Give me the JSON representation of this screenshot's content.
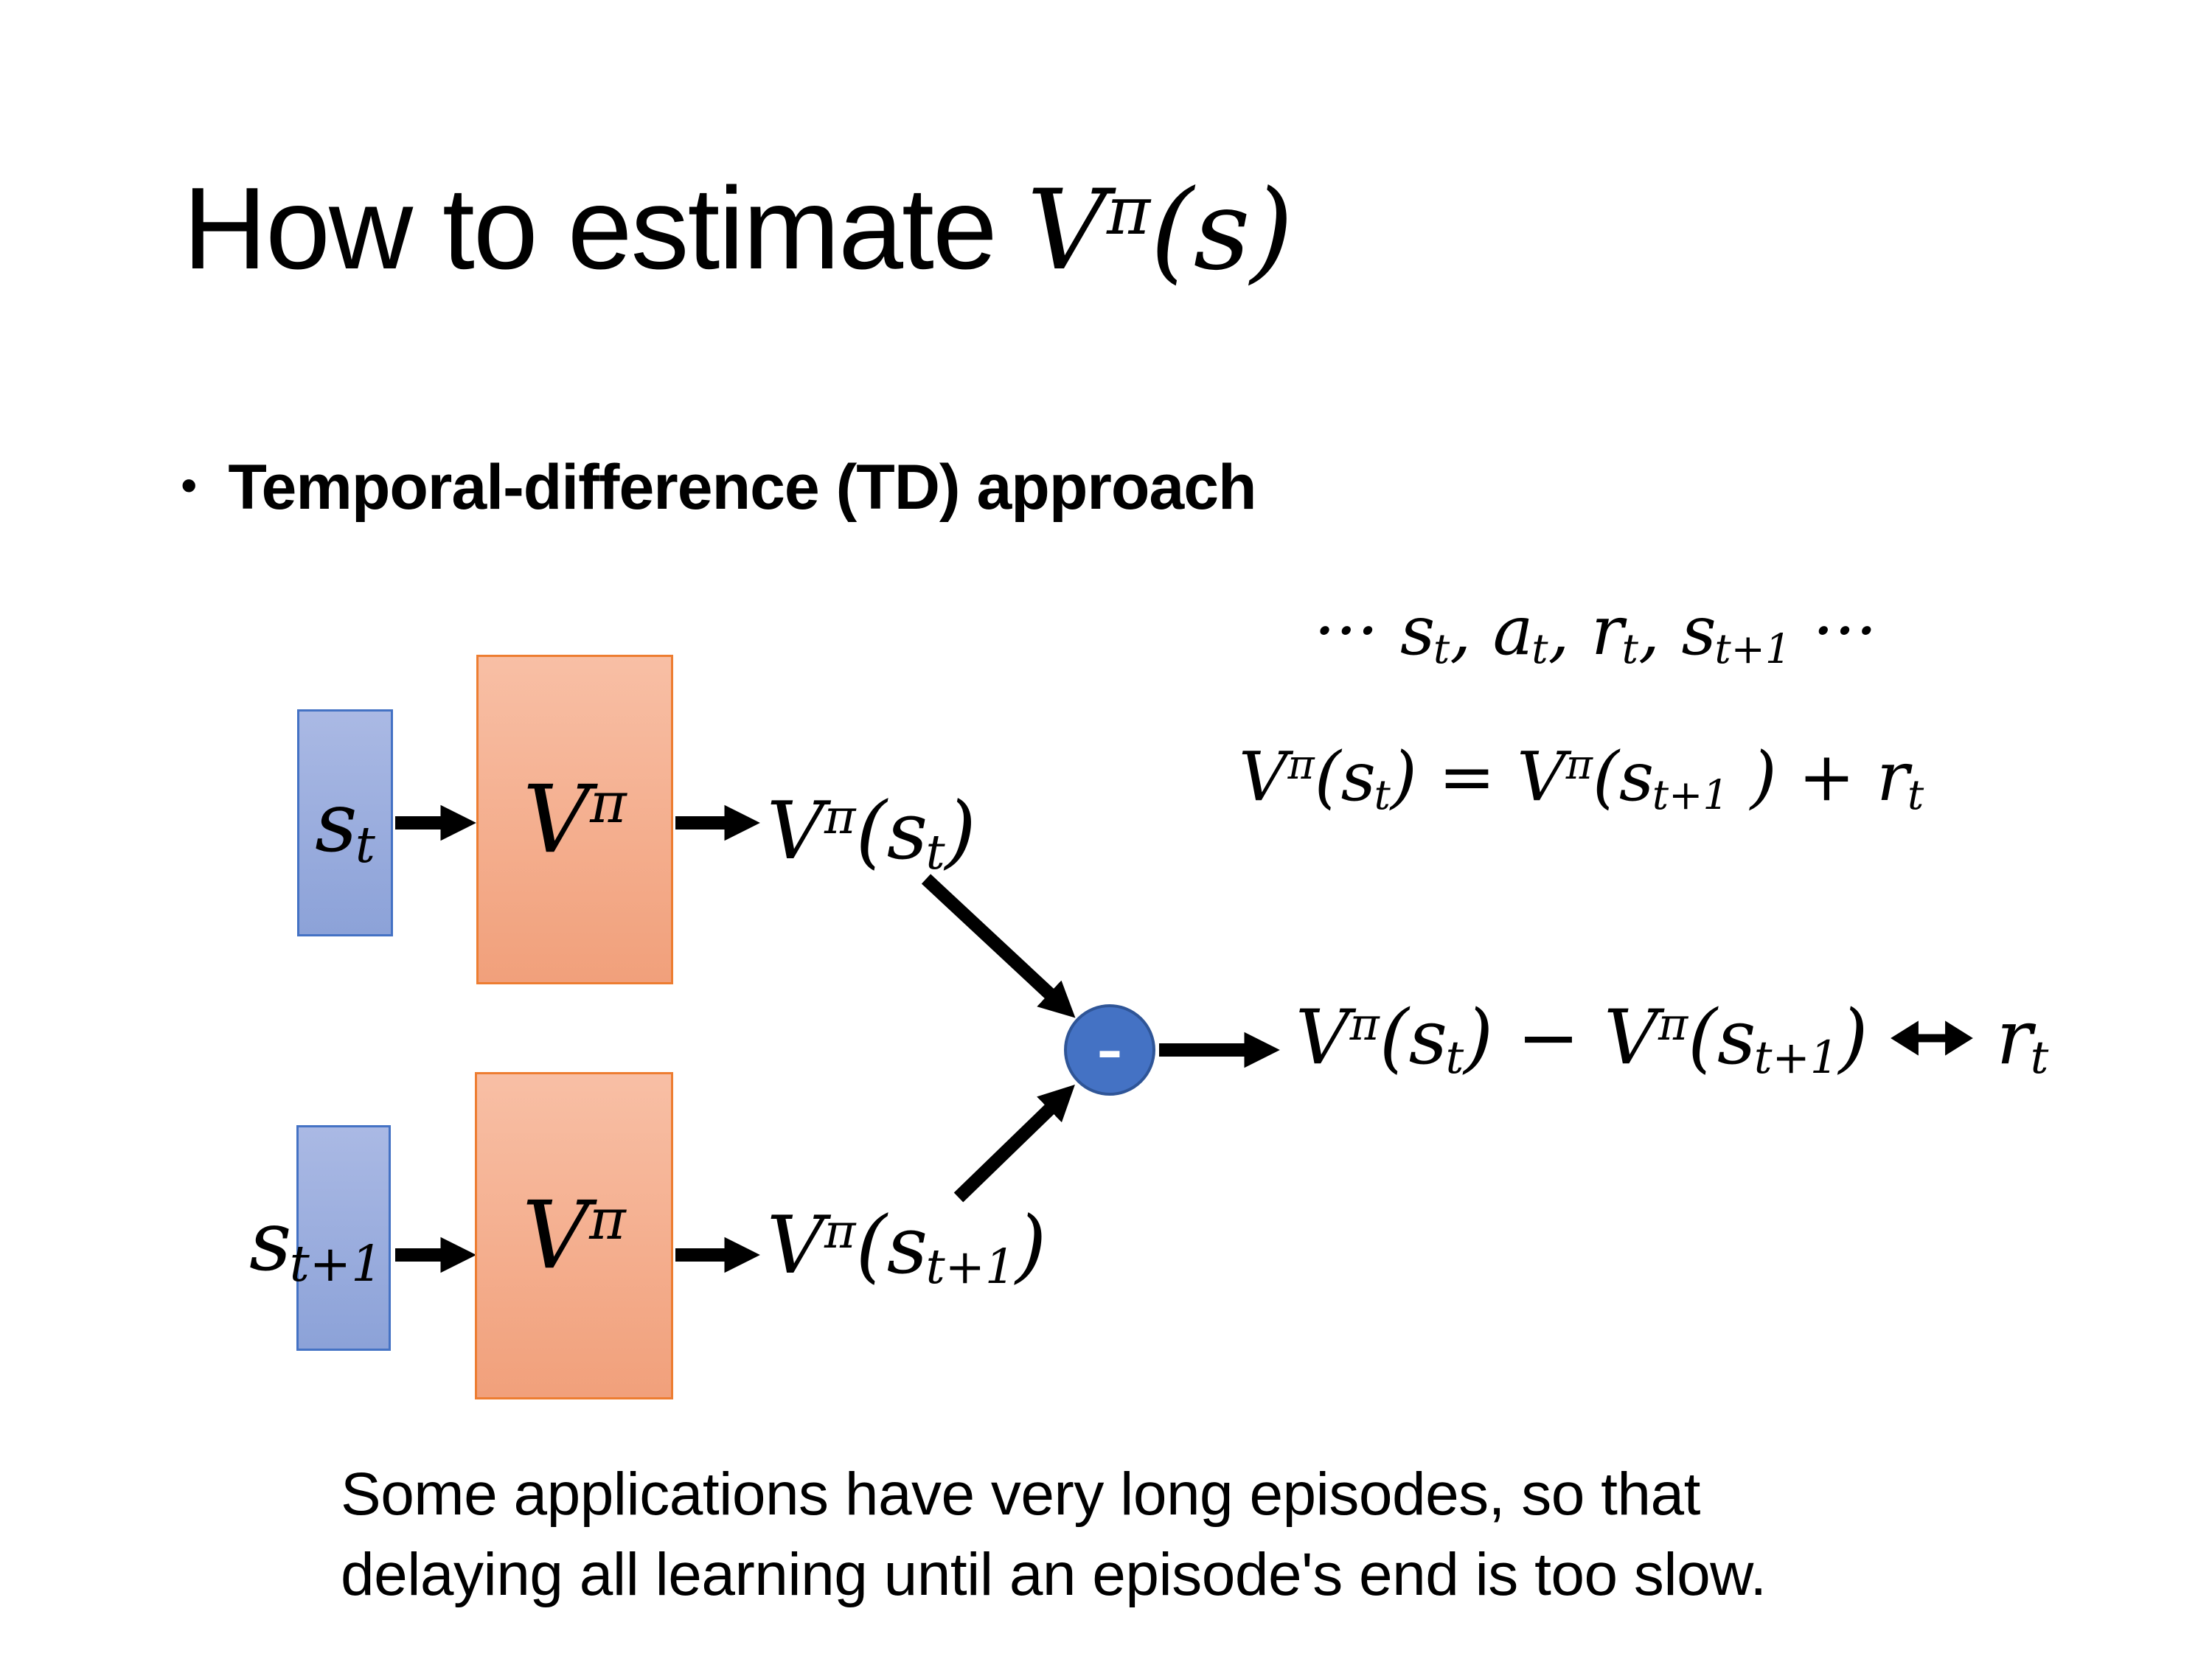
{
  "slide": {
    "title": {
      "text": "How to estimate ",
      "math": "V^{π}(s)"
    },
    "bullet": {
      "marker": "•",
      "label": "Temporal-difference (TD) approach"
    },
    "equations": {
      "trajectory": "··· s_{t}, a_{t}, r_{t}, s_{t+1} ···",
      "td_update": "V^{π}(s_{t}) = V^{π}(s_{t+1} ) + r_{t}",
      "td_error_left": "V^{π}(s_{t}) − V^{π}(s_{t+1})",
      "td_error_right": "r_{t}"
    },
    "diagram": {
      "state_t_label": "s_{t}",
      "state_t1_label": "s_{t+1}",
      "value_fn_label": "V^{π}",
      "value_t_label": "V^{π}(s_{t})",
      "value_t1_label": "V^{π}(s_{t+1})",
      "minus_label": "-",
      "colors": {
        "state_fill_top": "#aab9e4",
        "state_fill_bottom": "#8ca2d8",
        "state_border": "#4472c4",
        "value_fill_top": "#f8bfa5",
        "value_fill_bottom": "#f1a07b",
        "value_border": "#ed7d31",
        "circle_fill": "#4472c4",
        "circle_border": "#2f5597",
        "arrow_color": "#000000"
      }
    },
    "note": {
      "lines": [
        "Some applications have very long episodes, so that",
        "delaying all learning until an episode's end is too slow."
      ]
    }
  }
}
